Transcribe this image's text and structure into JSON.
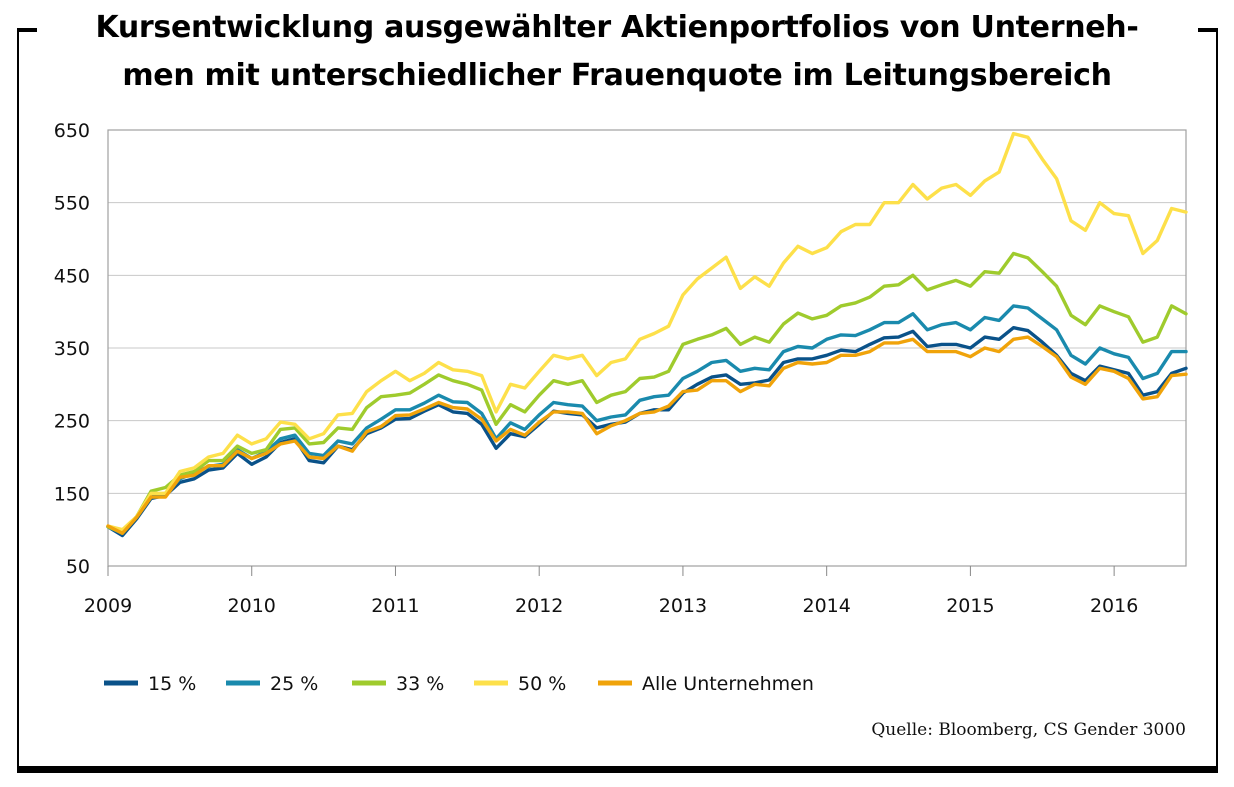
{
  "title": "Kursentwicklung ausgewählter Aktienportfolios von Unterneh-\nmen mit unterschiedlicher Frauenquote im Leitungsbereich",
  "source": "Quelle: Bloomberg, CS Gender 3000",
  "chart_data": {
    "type": "line",
    "title": "Kursentwicklung ausgewählter Aktienportfolios von Unternehmen mit unterschiedlicher Frauenquote im Leitungsbereich",
    "xlabel": "",
    "ylabel": "",
    "ylim": [
      50,
      650
    ],
    "yticks": [
      50,
      150,
      250,
      350,
      450,
      550,
      650
    ],
    "xlim": [
      2009.0,
      2016.5
    ],
    "xticks": [
      "2009",
      "2010",
      "2011",
      "2012",
      "2013",
      "2014",
      "2015",
      "2016"
    ],
    "grid": "horizontal",
    "legend_position": "bottom",
    "series": [
      {
        "name": "15 %",
        "color": "#0a5289",
        "x": [
          2009.0,
          2009.1,
          2009.2,
          2009.3,
          2009.4,
          2009.5,
          2009.6,
          2009.7,
          2009.8,
          2009.9,
          2010.0,
          2010.1,
          2010.2,
          2010.3,
          2010.4,
          2010.5,
          2010.6,
          2010.7,
          2010.8,
          2010.9,
          2011.0,
          2011.1,
          2011.2,
          2011.3,
          2011.4,
          2011.5,
          2011.6,
          2011.7,
          2011.8,
          2011.9,
          2012.0,
          2012.1,
          2012.2,
          2012.3,
          2012.4,
          2012.5,
          2012.6,
          2012.7,
          2012.8,
          2012.9,
          2013.0,
          2013.1,
          2013.2,
          2013.3,
          2013.4,
          2013.5,
          2013.6,
          2013.7,
          2013.8,
          2013.9,
          2014.0,
          2014.1,
          2014.2,
          2014.3,
          2014.4,
          2014.5,
          2014.6,
          2014.7,
          2014.8,
          2014.9,
          2015.0,
          2015.1,
          2015.2,
          2015.3,
          2015.4,
          2015.5,
          2015.6,
          2015.7,
          2015.8,
          2015.9,
          2016.0,
          2016.1,
          2016.2,
          2016.3,
          2016.4,
          2016.5
        ],
        "values": [
          104,
          92,
          115,
          143,
          147,
          165,
          170,
          182,
          185,
          205,
          190,
          200,
          220,
          225,
          195,
          192,
          215,
          210,
          232,
          240,
          252,
          253,
          263,
          272,
          262,
          260,
          245,
          212,
          232,
          228,
          245,
          263,
          260,
          258,
          240,
          245,
          248,
          260,
          265,
          265,
          288,
          300,
          310,
          313,
          300,
          302,
          306,
          330,
          335,
          335,
          340,
          347,
          345,
          355,
          364,
          365,
          373,
          352,
          355,
          355,
          350,
          365,
          362,
          378,
          374,
          358,
          340,
          315,
          305,
          325,
          320,
          315,
          285,
          290,
          315,
          322
        ]
      },
      {
        "name": "25 %",
        "color": "#1a8aad",
        "x": [
          2009.0,
          2009.1,
          2009.2,
          2009.3,
          2009.4,
          2009.5,
          2009.6,
          2009.7,
          2009.8,
          2009.9,
          2010.0,
          2010.1,
          2010.2,
          2010.3,
          2010.4,
          2010.5,
          2010.6,
          2010.7,
          2010.8,
          2010.9,
          2011.0,
          2011.1,
          2011.2,
          2011.3,
          2011.4,
          2011.5,
          2011.6,
          2011.7,
          2011.8,
          2011.9,
          2012.0,
          2012.1,
          2012.2,
          2012.3,
          2012.4,
          2012.5,
          2012.6,
          2012.7,
          2012.8,
          2012.9,
          2013.0,
          2013.1,
          2013.2,
          2013.3,
          2013.4,
          2013.5,
          2013.6,
          2013.7,
          2013.8,
          2013.9,
          2014.0,
          2014.1,
          2014.2,
          2014.3,
          2014.4,
          2014.5,
          2014.6,
          2014.7,
          2014.8,
          2014.9,
          2015.0,
          2015.1,
          2015.2,
          2015.3,
          2015.4,
          2015.5,
          2015.6,
          2015.7,
          2015.8,
          2015.9,
          2016.0,
          2016.1,
          2016.2,
          2016.3,
          2016.4,
          2016.5
        ],
        "values": [
          104,
          95,
          118,
          146,
          150,
          170,
          178,
          187,
          190,
          210,
          198,
          207,
          225,
          230,
          205,
          202,
          222,
          218,
          240,
          252,
          265,
          265,
          274,
          285,
          276,
          275,
          260,
          225,
          247,
          238,
          258,
          275,
          272,
          270,
          250,
          255,
          258,
          278,
          283,
          285,
          308,
          318,
          330,
          333,
          318,
          322,
          320,
          345,
          352,
          350,
          362,
          368,
          367,
          375,
          385,
          385,
          397,
          375,
          382,
          385,
          375,
          392,
          388,
          408,
          405,
          390,
          375,
          340,
          328,
          350,
          342,
          337,
          308,
          315,
          345,
          345
        ]
      },
      {
        "name": "33 %",
        "color": "#9fcb2d",
        "x": [
          2009.0,
          2009.1,
          2009.2,
          2009.3,
          2009.4,
          2009.5,
          2009.6,
          2009.7,
          2009.8,
          2009.9,
          2010.0,
          2010.1,
          2010.2,
          2010.3,
          2010.4,
          2010.5,
          2010.6,
          2010.7,
          2010.8,
          2010.9,
          2011.0,
          2011.1,
          2011.2,
          2011.3,
          2011.4,
          2011.5,
          2011.6,
          2011.7,
          2011.8,
          2011.9,
          2012.0,
          2012.1,
          2012.2,
          2012.3,
          2012.4,
          2012.5,
          2012.6,
          2012.7,
          2012.8,
          2012.9,
          2013.0,
          2013.1,
          2013.2,
          2013.3,
          2013.4,
          2013.5,
          2013.6,
          2013.7,
          2013.8,
          2013.9,
          2014.0,
          2014.1,
          2014.2,
          2014.3,
          2014.4,
          2014.5,
          2014.6,
          2014.7,
          2014.8,
          2014.9,
          2015.0,
          2015.1,
          2015.2,
          2015.3,
          2015.4,
          2015.5,
          2015.6,
          2015.7,
          2015.8,
          2015.9,
          2016.0,
          2016.1,
          2016.2,
          2016.3,
          2016.4,
          2016.5
        ],
        "values": [
          104,
          96,
          118,
          153,
          158,
          175,
          180,
          195,
          195,
          215,
          205,
          210,
          238,
          240,
          218,
          220,
          240,
          238,
          268,
          283,
          285,
          288,
          300,
          313,
          305,
          300,
          292,
          245,
          272,
          262,
          285,
          305,
          300,
          305,
          275,
          285,
          290,
          308,
          310,
          318,
          355,
          362,
          368,
          377,
          355,
          365,
          358,
          383,
          398,
          390,
          395,
          408,
          412,
          420,
          435,
          437,
          450,
          430,
          437,
          443,
          435,
          455,
          453,
          480,
          474,
          455,
          435,
          395,
          382,
          408,
          400,
          393,
          358,
          365,
          408,
          397
        ]
      },
      {
        "name": "50 %",
        "color": "#fde04a",
        "x": [
          2009.0,
          2009.1,
          2009.2,
          2009.3,
          2009.4,
          2009.5,
          2009.6,
          2009.7,
          2009.8,
          2009.9,
          2010.0,
          2010.1,
          2010.2,
          2010.3,
          2010.4,
          2010.5,
          2010.6,
          2010.7,
          2010.8,
          2010.9,
          2011.0,
          2011.1,
          2011.2,
          2011.3,
          2011.4,
          2011.5,
          2011.6,
          2011.7,
          2011.8,
          2011.9,
          2012.0,
          2012.1,
          2012.2,
          2012.3,
          2012.4,
          2012.5,
          2012.6,
          2012.7,
          2012.8,
          2012.9,
          2013.0,
          2013.1,
          2013.2,
          2013.3,
          2013.4,
          2013.5,
          2013.6,
          2013.7,
          2013.8,
          2013.9,
          2014.0,
          2014.1,
          2014.2,
          2014.3,
          2014.4,
          2014.5,
          2014.6,
          2014.7,
          2014.8,
          2014.9,
          2015.0,
          2015.1,
          2015.2,
          2015.3,
          2015.4,
          2015.5,
          2015.6,
          2015.7,
          2015.8,
          2015.9,
          2016.0,
          2016.1,
          2016.2,
          2016.3,
          2016.4,
          2016.5
        ],
        "values": [
          105,
          100,
          118,
          150,
          150,
          180,
          185,
          200,
          205,
          230,
          218,
          225,
          248,
          245,
          225,
          232,
          258,
          260,
          290,
          305,
          318,
          305,
          315,
          330,
          320,
          318,
          312,
          262,
          300,
          295,
          318,
          340,
          335,
          340,
          312,
          330,
          335,
          362,
          370,
          380,
          423,
          445,
          460,
          475,
          432,
          448,
          435,
          467,
          490,
          480,
          488,
          510,
          520,
          520,
          550,
          550,
          575,
          555,
          570,
          575,
          560,
          580,
          592,
          645,
          640,
          610,
          583,
          525,
          512,
          550,
          535,
          532,
          480,
          498,
          542,
          537
        ]
      },
      {
        "name": "Alle Unternehmen",
        "color": "#f0a30a",
        "x": [
          2009.0,
          2009.1,
          2009.2,
          2009.3,
          2009.4,
          2009.5,
          2009.6,
          2009.7,
          2009.8,
          2009.9,
          2010.0,
          2010.1,
          2010.2,
          2010.3,
          2010.4,
          2010.5,
          2010.6,
          2010.7,
          2010.8,
          2010.9,
          2011.0,
          2011.1,
          2011.2,
          2011.3,
          2011.4,
          2011.5,
          2011.6,
          2011.7,
          2011.8,
          2011.9,
          2012.0,
          2012.1,
          2012.2,
          2012.3,
          2012.4,
          2012.5,
          2012.6,
          2012.7,
          2012.8,
          2012.9,
          2013.0,
          2013.1,
          2013.2,
          2013.3,
          2013.4,
          2013.5,
          2013.6,
          2013.7,
          2013.8,
          2013.9,
          2014.0,
          2014.1,
          2014.2,
          2014.3,
          2014.4,
          2014.5,
          2014.6,
          2014.7,
          2014.8,
          2014.9,
          2015.0,
          2015.1,
          2015.2,
          2015.3,
          2015.4,
          2015.5,
          2015.6,
          2015.7,
          2015.8,
          2015.9,
          2016.0,
          2016.1,
          2016.2,
          2016.3,
          2016.4,
          2016.5
        ],
        "values": [
          105,
          95,
          117,
          145,
          145,
          172,
          175,
          188,
          188,
          208,
          198,
          205,
          218,
          222,
          200,
          198,
          215,
          208,
          235,
          242,
          257,
          258,
          266,
          275,
          268,
          266,
          252,
          222,
          238,
          230,
          248,
          262,
          262,
          260,
          232,
          243,
          250,
          260,
          262,
          270,
          290,
          292,
          305,
          305,
          290,
          300,
          298,
          322,
          330,
          328,
          330,
          340,
          340,
          345,
          357,
          357,
          362,
          345,
          345,
          345,
          338,
          350,
          345,
          362,
          365,
          352,
          338,
          310,
          300,
          322,
          318,
          308,
          280,
          283,
          312,
          314
        ]
      }
    ]
  }
}
